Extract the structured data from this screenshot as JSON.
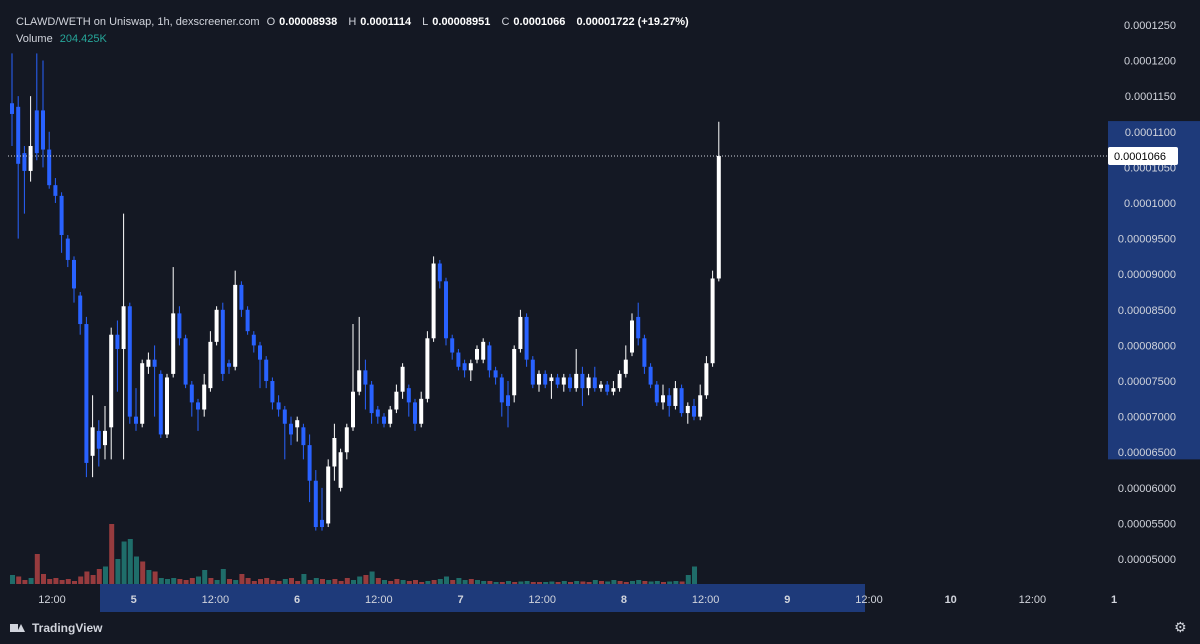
{
  "header": {
    "symbol": "CLAWD/WETH on Uniswap, 1h, dexscreener.com",
    "open_label": "O",
    "open": "0.00008938",
    "high_label": "H",
    "high": "0.0001114",
    "low_label": "L",
    "low": "0.00008951",
    "close_label": "C",
    "close": "0.0001066",
    "change": "0.00001722 (+19.27%)",
    "volume_label": "Volume",
    "volume": "204.425K"
  },
  "footer": {
    "brand": "TradingView"
  },
  "colors": {
    "background": "#141823",
    "up": "#ffffff",
    "down": "#2962ff",
    "vol_up": "#26a69a",
    "vol_down": "#ef5350",
    "price_tag_bg": "#ffffff",
    "price_tag_text": "#000000",
    "highlight": "#1e3a7a"
  },
  "chart_data": {
    "type": "candlestick",
    "title": "CLAWD/WETH on Uniswap, 1h, dexscreener.com",
    "y_ticks": [
      "0.0001250",
      "0.0001200",
      "0.0001150",
      "0.0001100",
      "0.0001050",
      "0.0001000",
      "0.00009500",
      "0.00009000",
      "0.00008500",
      "0.00008000",
      "0.00007500",
      "0.00007000",
      "0.00006500",
      "0.00006000",
      "0.00005500",
      "0.00005000"
    ],
    "x_ticks": [
      "12:00",
      "5",
      "12:00",
      "6",
      "12:00",
      "7",
      "12:00",
      "8",
      "12:00",
      "9",
      "12:00",
      "10",
      "12:00",
      "1"
    ],
    "ylim": [
      4.65e-05,
      0.0001285
    ],
    "current_price": "0.0001066",
    "grid": false,
    "candles": [
      {
        "o": 0.000114,
        "c": 0.0001125,
        "h": 0.000121,
        "l": 0.000108
      },
      {
        "o": 0.0001135,
        "c": 0.0001055,
        "h": 0.000115,
        "l": 9.5e-05
      },
      {
        "o": 0.000107,
        "c": 0.0001045,
        "h": 0.000108,
        "l": 9.85e-05
      },
      {
        "o": 0.0001045,
        "c": 0.000108,
        "h": 0.000115,
        "l": 0.000103
      },
      {
        "o": 0.000113,
        "c": 0.000107,
        "h": 0.000121,
        "l": 0.000106
      },
      {
        "o": 0.000113,
        "c": 0.0001075,
        "h": 0.00012,
        "l": 0.000105
      },
      {
        "o": 0.0001075,
        "c": 0.0001025,
        "h": 0.00011,
        "l": 0.000102
      },
      {
        "o": 0.0001025,
        "c": 0.000101,
        "h": 0.0001035,
        "l": 0.0001
      },
      {
        "o": 0.000101,
        "c": 9.55e-05,
        "h": 0.0001015,
        "l": 9.3e-05
      },
      {
        "o": 9.5e-05,
        "c": 9.2e-05,
        "h": 9.55e-05,
        "l": 9.1e-05
      },
      {
        "o": 9.2e-05,
        "c": 8.8e-05,
        "h": 9.25e-05,
        "l": 8.6e-05
      },
      {
        "o": 8.7e-05,
        "c": 8.3e-05,
        "h": 8.75e-05,
        "l": 8.15e-05
      },
      {
        "o": 8.3e-05,
        "c": 6.35e-05,
        "h": 8.4e-05,
        "l": 6.15e-05
      },
      {
        "o": 6.45e-05,
        "c": 6.85e-05,
        "h": 7.3e-05,
        "l": 6.15e-05
      },
      {
        "o": 6.8e-05,
        "c": 6.55e-05,
        "h": 6.95e-05,
        "l": 6.3e-05
      },
      {
        "o": 6.6e-05,
        "c": 6.8e-05,
        "h": 7.15e-05,
        "l": 6.4e-05
      },
      {
        "o": 6.85e-05,
        "c": 8.15e-05,
        "h": 8.25e-05,
        "l": 6.4e-05
      },
      {
        "o": 8.15e-05,
        "c": 7.95e-05,
        "h": 8.35e-05,
        "l": 7.35e-05
      },
      {
        "o": 7.95e-05,
        "c": 8.55e-05,
        "h": 9.85e-05,
        "l": 6.4e-05
      },
      {
        "o": 8.55e-05,
        "c": 7e-05,
        "h": 8.6e-05,
        "l": 6.9e-05
      },
      {
        "o": 7e-05,
        "c": 6.9e-05,
        "h": 7.4e-05,
        "l": 6.8e-05
      },
      {
        "o": 6.9e-05,
        "c": 7.75e-05,
        "h": 7.8e-05,
        "l": 6.85e-05
      },
      {
        "o": 7.7e-05,
        "c": 7.8e-05,
        "h": 7.9e-05,
        "l": 7.6e-05
      },
      {
        "o": 7.8e-05,
        "c": 7.7e-05,
        "h": 8e-05,
        "l": 7e-05
      },
      {
        "o": 7.6e-05,
        "c": 6.75e-05,
        "h": 7.65e-05,
        "l": 6.7e-05
      },
      {
        "o": 6.75e-05,
        "c": 7.55e-05,
        "h": 7.6e-05,
        "l": 6.7e-05
      },
      {
        "o": 7.6e-05,
        "c": 8.45e-05,
        "h": 9.1e-05,
        "l": 7.55e-05
      },
      {
        "o": 8.45e-05,
        "c": 8.1e-05,
        "h": 8.55e-05,
        "l": 8e-05
      },
      {
        "o": 8.1e-05,
        "c": 7.45e-05,
        "h": 8.15e-05,
        "l": 7.4e-05
      },
      {
        "o": 7.45e-05,
        "c": 7.2e-05,
        "h": 7.5e-05,
        "l": 7e-05
      },
      {
        "o": 7.2e-05,
        "c": 7.1e-05,
        "h": 7.25e-05,
        "l": 6.8e-05
      },
      {
        "o": 7.1e-05,
        "c": 7.45e-05,
        "h": 7.6e-05,
        "l": 7e-05
      },
      {
        "o": 7.4e-05,
        "c": 8.05e-05,
        "h": 8.2e-05,
        "l": 7.35e-05
      },
      {
        "o": 8.05e-05,
        "c": 8.5e-05,
        "h": 8.55e-05,
        "l": 8e-05
      },
      {
        "o": 8.5e-05,
        "c": 7.6e-05,
        "h": 8.6e-05,
        "l": 7.5e-05
      },
      {
        "o": 7.75e-05,
        "c": 7.7e-05,
        "h": 7.8e-05,
        "l": 7.6e-05
      },
      {
        "o": 7.7e-05,
        "c": 8.85e-05,
        "h": 9.05e-05,
        "l": 7.65e-05
      },
      {
        "o": 8.85e-05,
        "c": 8.5e-05,
        "h": 8.9e-05,
        "l": 8.4e-05
      },
      {
        "o": 8.5e-05,
        "c": 8.2e-05,
        "h": 8.55e-05,
        "l": 8.15e-05
      },
      {
        "o": 8.15e-05,
        "c": 8e-05,
        "h": 8.2e-05,
        "l": 7.9e-05
      },
      {
        "o": 8e-05,
        "c": 7.8e-05,
        "h": 8.05e-05,
        "l": 7.4e-05
      },
      {
        "o": 7.8e-05,
        "c": 7.5e-05,
        "h": 7.85e-05,
        "l": 7.4e-05
      },
      {
        "o": 7.5e-05,
        "c": 7.2e-05,
        "h": 7.55e-05,
        "l": 7.1e-05
      },
      {
        "o": 7.2e-05,
        "c": 7.1e-05,
        "h": 7.3e-05,
        "l": 7e-05
      },
      {
        "o": 7.1e-05,
        "c": 6.9e-05,
        "h": 7.15e-05,
        "l": 6.4e-05
      },
      {
        "o": 6.9e-05,
        "c": 6.75e-05,
        "h": 7e-05,
        "l": 6.6e-05
      },
      {
        "o": 6.85e-05,
        "c": 6.95e-05,
        "h": 7e-05,
        "l": 6.65e-05
      },
      {
        "o": 6.85e-05,
        "c": 6.6e-05,
        "h": 6.9e-05,
        "l": 6.4e-05
      },
      {
        "o": 6.6e-05,
        "c": 6.1e-05,
        "h": 6.75e-05,
        "l": 5.8e-05
      },
      {
        "o": 6.1e-05,
        "c": 5.45e-05,
        "h": 6.25e-05,
        "l": 5.4e-05
      },
      {
        "o": 5.55e-05,
        "c": 5.45e-05,
        "h": 6e-05,
        "l": 5.4e-05
      },
      {
        "o": 5.5e-05,
        "c": 6.3e-05,
        "h": 6.4e-05,
        "l": 5.45e-05
      },
      {
        "o": 6.3e-05,
        "c": 6.7e-05,
        "h": 6.9e-05,
        "l": 6.1e-05
      },
      {
        "o": 6e-05,
        "c": 6.5e-05,
        "h": 6.55e-05,
        "l": 5.95e-05
      },
      {
        "o": 6.5e-05,
        "c": 6.85e-05,
        "h": 6.9e-05,
        "l": 6.4e-05
      },
      {
        "o": 6.85e-05,
        "c": 7.35e-05,
        "h": 8.3e-05,
        "l": 6.8e-05
      },
      {
        "o": 7.35e-05,
        "c": 7.65e-05,
        "h": 8.4e-05,
        "l": 7.3e-05
      },
      {
        "o": 7.65e-05,
        "c": 7.45e-05,
        "h": 7.8e-05,
        "l": 7.1e-05
      },
      {
        "o": 7.45e-05,
        "c": 7.05e-05,
        "h": 7.5e-05,
        "l": 6.9e-05
      },
      {
        "o": 7.1e-05,
        "c": 7e-05,
        "h": 7.15e-05,
        "l": 6.9e-05
      },
      {
        "o": 7e-05,
        "c": 6.9e-05,
        "h": 7.05e-05,
        "l": 6.85e-05
      },
      {
        "o": 6.9e-05,
        "c": 7.1e-05,
        "h": 7.15e-05,
        "l": 6.85e-05
      },
      {
        "o": 7.1e-05,
        "c": 7.35e-05,
        "h": 7.45e-05,
        "l": 7.05e-05
      },
      {
        "o": 7.35e-05,
        "c": 7.7e-05,
        "h": 7.75e-05,
        "l": 7.25e-05
      },
      {
        "o": 7.4e-05,
        "c": 7.2e-05,
        "h": 7.45e-05,
        "l": 7e-05
      },
      {
        "o": 7.2e-05,
        "c": 6.9e-05,
        "h": 7.25e-05,
        "l": 6.8e-05
      },
      {
        "o": 6.9e-05,
        "c": 7.25e-05,
        "h": 7.35e-05,
        "l": 6.85e-05
      },
      {
        "o": 7.25e-05,
        "c": 8.1e-05,
        "h": 8.2e-05,
        "l": 7.2e-05
      },
      {
        "o": 8.1e-05,
        "c": 9.15e-05,
        "h": 9.25e-05,
        "l": 8.05e-05
      },
      {
        "o": 9.15e-05,
        "c": 8.9e-05,
        "h": 9.2e-05,
        "l": 8.8e-05
      },
      {
        "o": 8.9e-05,
        "c": 8.1e-05,
        "h": 8.95e-05,
        "l": 8e-05
      },
      {
        "o": 8.1e-05,
        "c": 7.9e-05,
        "h": 8.15e-05,
        "l": 7.8e-05
      },
      {
        "o": 7.9e-05,
        "c": 7.7e-05,
        "h": 7.95e-05,
        "l": 7.65e-05
      },
      {
        "o": 7.75e-05,
        "c": 7.65e-05,
        "h": 7.8e-05,
        "l": 7.55e-05
      },
      {
        "o": 7.65e-05,
        "c": 7.75e-05,
        "h": 7.8e-05,
        "l": 7.5e-05
      },
      {
        "o": 7.8e-05,
        "c": 7.95e-05,
        "h": 8e-05,
        "l": 7.75e-05
      },
      {
        "o": 7.8e-05,
        "c": 8.05e-05,
        "h": 8.1e-05,
        "l": 7.75e-05
      },
      {
        "o": 8e-05,
        "c": 7.65e-05,
        "h": 8.05e-05,
        "l": 7.55e-05
      },
      {
        "o": 7.65e-05,
        "c": 7.55e-05,
        "h": 7.7e-05,
        "l": 7.45e-05
      },
      {
        "o": 7.55e-05,
        "c": 7.2e-05,
        "h": 7.6e-05,
        "l": 7e-05
      },
      {
        "o": 7.3e-05,
        "c": 7.15e-05,
        "h": 7.5e-05,
        "l": 6.85e-05
      },
      {
        "o": 7.3e-05,
        "c": 7.95e-05,
        "h": 8e-05,
        "l": 7.2e-05
      },
      {
        "o": 7.95e-05,
        "c": 8.4e-05,
        "h": 8.5e-05,
        "l": 7.9e-05
      },
      {
        "o": 8.4e-05,
        "c": 7.8e-05,
        "h": 8.45e-05,
        "l": 7.7e-05
      },
      {
        "o": 7.8e-05,
        "c": 7.45e-05,
        "h": 7.85e-05,
        "l": 7.4e-05
      },
      {
        "o": 7.45e-05,
        "c": 7.6e-05,
        "h": 7.65e-05,
        "l": 7.35e-05
      },
      {
        "o": 7.6e-05,
        "c": 7.45e-05,
        "h": 7.65e-05,
        "l": 7.4e-05
      },
      {
        "o": 7.5e-05,
        "c": 7.55e-05,
        "h": 7.6e-05,
        "l": 7.25e-05
      },
      {
        "o": 7.55e-05,
        "c": 7.45e-05,
        "h": 7.6e-05,
        "l": 7.4e-05
      },
      {
        "o": 7.45e-05,
        "c": 7.55e-05,
        "h": 7.6e-05,
        "l": 7.35e-05
      },
      {
        "o": 7.55e-05,
        "c": 7.4e-05,
        "h": 7.6e-05,
        "l": 7.35e-05
      },
      {
        "o": 7.4e-05,
        "c": 7.6e-05,
        "h": 7.95e-05,
        "l": 7.35e-05
      },
      {
        "o": 7.6e-05,
        "c": 7.4e-05,
        "h": 7.7e-05,
        "l": 7.15e-05
      },
      {
        "o": 7.4e-05,
        "c": 7.55e-05,
        "h": 7.6e-05,
        "l": 7.3e-05
      },
      {
        "o": 7.55e-05,
        "c": 7.4e-05,
        "h": 7.7e-05,
        "l": 7.35e-05
      },
      {
        "o": 7.4e-05,
        "c": 7.45e-05,
        "h": 7.5e-05,
        "l": 7.35e-05
      },
      {
        "o": 7.45e-05,
        "c": 7.35e-05,
        "h": 7.5e-05,
        "l": 7.3e-05
      },
      {
        "o": 7.35e-05,
        "c": 7.4e-05,
        "h": 7.5e-05,
        "l": 7.3e-05
      },
      {
        "o": 7.4e-05,
        "c": 7.6e-05,
        "h": 7.65e-05,
        "l": 7.35e-05
      },
      {
        "o": 7.6e-05,
        "c": 7.8e-05,
        "h": 8e-05,
        "l": 7.55e-05
      },
      {
        "o": 7.9e-05,
        "c": 8.35e-05,
        "h": 8.45e-05,
        "l": 7.85e-05
      },
      {
        "o": 8.4e-05,
        "c": 8.1e-05,
        "h": 8.6e-05,
        "l": 8e-05
      },
      {
        "o": 8.1e-05,
        "c": 7.7e-05,
        "h": 8.15e-05,
        "l": 7.6e-05
      },
      {
        "o": 7.7e-05,
        "c": 7.45e-05,
        "h": 7.75e-05,
        "l": 7.4e-05
      },
      {
        "o": 7.45e-05,
        "c": 7.2e-05,
        "h": 7.5e-05,
        "l": 7.15e-05
      },
      {
        "o": 7.2e-05,
        "c": 7.3e-05,
        "h": 7.45e-05,
        "l": 7.1e-05
      },
      {
        "o": 7.3e-05,
        "c": 7.15e-05,
        "h": 7.4e-05,
        "l": 7e-05
      },
      {
        "o": 7.15e-05,
        "c": 7.4e-05,
        "h": 7.5e-05,
        "l": 7.1e-05
      },
      {
        "o": 7.4e-05,
        "c": 7.05e-05,
        "h": 7.45e-05,
        "l": 7e-05
      },
      {
        "o": 7.05e-05,
        "c": 7.15e-05,
        "h": 7.2e-05,
        "l": 6.9e-05
      },
      {
        "o": 7.15e-05,
        "c": 7e-05,
        "h": 7.25e-05,
        "l": 6.95e-05
      },
      {
        "o": 7e-05,
        "c": 7.3e-05,
        "h": 7.45e-05,
        "l": 6.95e-05
      },
      {
        "o": 7.3e-05,
        "c": 7.75e-05,
        "h": 7.85e-05,
        "l": 7.25e-05
      },
      {
        "o": 7.75e-05,
        "c": 8.94e-05,
        "h": 9.05e-05,
        "l": 7.7e-05
      },
      {
        "o": 8.94e-05,
        "c": 0.0001066,
        "h": 0.0001114,
        "l": 8.9e-05
      }
    ],
    "volume": [
      {
        "v": 18,
        "up": true
      },
      {
        "v": 15,
        "up": false
      },
      {
        "v": 8,
        "up": false
      },
      {
        "v": 12,
        "up": true
      },
      {
        "v": 60,
        "up": false
      },
      {
        "v": 20,
        "up": false
      },
      {
        "v": 10,
        "up": false
      },
      {
        "v": 12,
        "up": false
      },
      {
        "v": 8,
        "up": false
      },
      {
        "v": 10,
        "up": false
      },
      {
        "v": 6,
        "up": false
      },
      {
        "v": 15,
        "up": false
      },
      {
        "v": 25,
        "up": false
      },
      {
        "v": 18,
        "up": false
      },
      {
        "v": 30,
        "up": false
      },
      {
        "v": 35,
        "up": true
      },
      {
        "v": 120,
        "up": false
      },
      {
        "v": 50,
        "up": true
      },
      {
        "v": 85,
        "up": true
      },
      {
        "v": 90,
        "up": true
      },
      {
        "v": 55,
        "up": true
      },
      {
        "v": 45,
        "up": false
      },
      {
        "v": 28,
        "up": true
      },
      {
        "v": 25,
        "up": false
      },
      {
        "v": 12,
        "up": true
      },
      {
        "v": 10,
        "up": true
      },
      {
        "v": 12,
        "up": true
      },
      {
        "v": 10,
        "up": false
      },
      {
        "v": 8,
        "up": false
      },
      {
        "v": 12,
        "up": false
      },
      {
        "v": 15,
        "up": true
      },
      {
        "v": 28,
        "up": true
      },
      {
        "v": 12,
        "up": false
      },
      {
        "v": 8,
        "up": true
      },
      {
        "v": 30,
        "up": true
      },
      {
        "v": 10,
        "up": false
      },
      {
        "v": 8,
        "up": true
      },
      {
        "v": 20,
        "up": false
      },
      {
        "v": 12,
        "up": false
      },
      {
        "v": 6,
        "up": false
      },
      {
        "v": 10,
        "up": false
      },
      {
        "v": 12,
        "up": false
      },
      {
        "v": 8,
        "up": false
      },
      {
        "v": 6,
        "up": false
      },
      {
        "v": 10,
        "up": true
      },
      {
        "v": 12,
        "up": false
      },
      {
        "v": 6,
        "up": false
      },
      {
        "v": 20,
        "up": true
      },
      {
        "v": 8,
        "up": false
      },
      {
        "v": 12,
        "up": true
      },
      {
        "v": 10,
        "up": false
      },
      {
        "v": 8,
        "up": true
      },
      {
        "v": 10,
        "up": false
      },
      {
        "v": 6,
        "up": false
      },
      {
        "v": 12,
        "up": false
      },
      {
        "v": 8,
        "up": true
      },
      {
        "v": 15,
        "up": true
      },
      {
        "v": 18,
        "up": false
      },
      {
        "v": 25,
        "up": true
      },
      {
        "v": 12,
        "up": false
      },
      {
        "v": 8,
        "up": true
      },
      {
        "v": 6,
        "up": false
      },
      {
        "v": 10,
        "up": false
      },
      {
        "v": 8,
        "up": true
      },
      {
        "v": 6,
        "up": false
      },
      {
        "v": 8,
        "up": false
      },
      {
        "v": 4,
        "up": false
      },
      {
        "v": 6,
        "up": true
      },
      {
        "v": 8,
        "up": false
      },
      {
        "v": 10,
        "up": true
      },
      {
        "v": 15,
        "up": true
      },
      {
        "v": 8,
        "up": false
      },
      {
        "v": 12,
        "up": true
      },
      {
        "v": 8,
        "up": true
      },
      {
        "v": 10,
        "up": false
      },
      {
        "v": 8,
        "up": true
      },
      {
        "v": 6,
        "up": true
      },
      {
        "v": 6,
        "up": false
      },
      {
        "v": 4,
        "up": true
      },
      {
        "v": 4,
        "up": false
      },
      {
        "v": 6,
        "up": true
      },
      {
        "v": 4,
        "up": false
      },
      {
        "v": 5,
        "up": true
      },
      {
        "v": 6,
        "up": true
      },
      {
        "v": 4,
        "up": false
      },
      {
        "v": 4,
        "up": false
      },
      {
        "v": 4,
        "up": true
      },
      {
        "v": 5,
        "up": true
      },
      {
        "v": 4,
        "up": false
      },
      {
        "v": 6,
        "up": true
      },
      {
        "v": 4,
        "up": false
      },
      {
        "v": 6,
        "up": true
      },
      {
        "v": 5,
        "up": false
      },
      {
        "v": 4,
        "up": false
      },
      {
        "v": 8,
        "up": true
      },
      {
        "v": 6,
        "up": false
      },
      {
        "v": 5,
        "up": true
      },
      {
        "v": 8,
        "up": true
      },
      {
        "v": 6,
        "up": false
      },
      {
        "v": 4,
        "up": false
      },
      {
        "v": 6,
        "up": true
      },
      {
        "v": 8,
        "up": true
      },
      {
        "v": 6,
        "up": false
      },
      {
        "v": 5,
        "up": true
      },
      {
        "v": 6,
        "up": true
      },
      {
        "v": 4,
        "up": false
      },
      {
        "v": 5,
        "up": true
      },
      {
        "v": 6,
        "up": true
      },
      {
        "v": 5,
        "up": false
      },
      {
        "v": 18,
        "up": true
      },
      {
        "v": 35,
        "up": true
      }
    ]
  }
}
